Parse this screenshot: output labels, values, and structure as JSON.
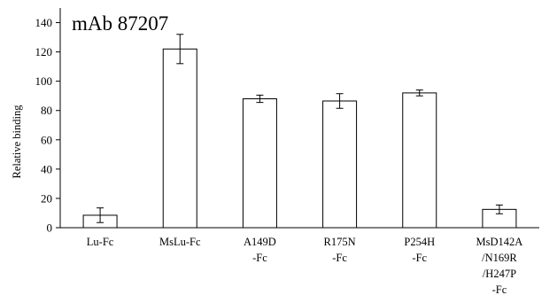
{
  "chart_data": {
    "type": "bar",
    "title": "mAb 87207",
    "xlabel": "",
    "ylabel": "Relative binding",
    "ylim": [
      0,
      150
    ],
    "yticks": [
      0,
      20,
      40,
      60,
      80,
      100,
      120,
      140
    ],
    "grid": false,
    "categories": [
      [
        "Lu-Fc"
      ],
      [
        "MsLu-Fc"
      ],
      [
        "A149D",
        "-Fc"
      ],
      [
        "R175N",
        "-Fc"
      ],
      [
        "P254H",
        "-Fc"
      ],
      [
        "MsD142A",
        "/N169R",
        "/H247P",
        "-Fc"
      ]
    ],
    "values": [
      8.5,
      122,
      88,
      86.5,
      92,
      12.5
    ],
    "errors": [
      5,
      10,
      2.5,
      5,
      2,
      3
    ],
    "bar_fill": "#ffffff",
    "bar_stroke": "#000000"
  }
}
